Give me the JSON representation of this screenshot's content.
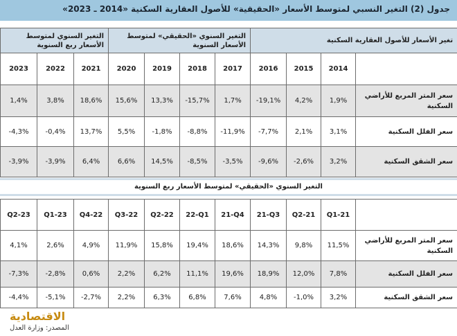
{
  "title": "جدول (2) التغير النسبي لمتوسط الأسعار «الحقيقية» للأصول العقارية السكنية «2014 ـ 2023»",
  "table1": {
    "group_headers": {
      "annual_assets": "تغير الأسعار للأصول العقارية السكنية",
      "annual_real": "التغير السنوي «الحقيقي» لمتوسط الأسعار السنوية",
      "annual_quarterly": "التغير السنوي لمتوسط الأسعار ربع السنوية"
    },
    "years": [
      "2014",
      "2015",
      "2016",
      "2017",
      "2018",
      "2019",
      "2020",
      "2021",
      "2022",
      "2023"
    ],
    "rows": [
      {
        "label": "سعر المتر المربع للأراضي السكنية",
        "values": [
          "1,9%",
          "4,2%",
          "-19,1%",
          "1,7%",
          "-15,7%",
          "13,3%",
          "15,6%",
          "18,6%",
          "3,8%",
          "1,4%"
        ]
      },
      {
        "label": "سعر الفلل السكنية",
        "values": [
          "3,1%",
          "2,1%",
          "-7,7%",
          "-11,9%",
          "-8,8%",
          "-1,8%",
          "5,5%",
          "13,7%",
          "-0,4%",
          "-4,3%"
        ]
      },
      {
        "label": "سعر الشقق السكنية",
        "values": [
          "3,2%",
          "-2,6%",
          "-9,6%",
          "-3,5%",
          "-8,5%",
          "14,5%",
          "6,6%",
          "6,4%",
          "-3,9%",
          "-3,9%"
        ]
      }
    ]
  },
  "table2": {
    "section_title": "التغير السنوي «الحقيقي» لمتوسط الأسعار ربع السنوية",
    "quarters": [
      "Q1-21",
      "Q2-21",
      "21-Q3",
      "21-Q4",
      "22-Q1",
      "Q2-22",
      "Q3-22",
      "Q4-22",
      "Q1-23",
      "Q2-23"
    ],
    "rows": [
      {
        "label": "سعر المتر المربع للأراضي السكنية",
        "values": [
          "11,5%",
          "9,8%",
          "14,3%",
          "18,6%",
          "19,4%",
          "15,8%",
          "11,9%",
          "4,9%",
          "2,6%",
          "4,1%"
        ]
      },
      {
        "label": "سعر الفلل السكنية",
        "values": [
          "7,8%",
          "12,0%",
          "18,9%",
          "19,6%",
          "11,1%",
          "6,2%",
          "2,2%",
          "0,6%",
          "-2,8%",
          "-7,3%"
        ]
      },
      {
        "label": "سعر الشقق السكنية",
        "values": [
          "3,2%",
          "-1,0%",
          "4,8%",
          "7,6%",
          "6,8%",
          "6,3%",
          "2,2%",
          "-2,7%",
          "-5,1%",
          "-4,4%"
        ]
      }
    ]
  },
  "footer": {
    "logo_text": "الاقتصادية",
    "source": "المصدر: وزارة العدل"
  },
  "colors": {
    "title_bg": "#9fc7df",
    "header_bg": "#cfdde8",
    "shaded_row": "#e4e4e4",
    "logo": "#c78b12"
  }
}
